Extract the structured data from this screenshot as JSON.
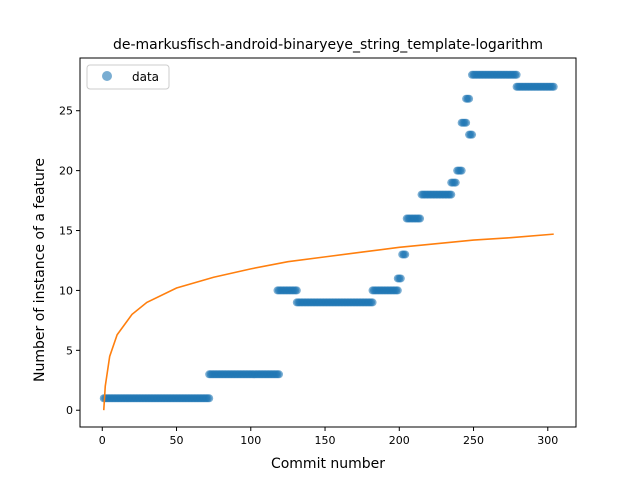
{
  "chart_data": {
    "type": "scatter",
    "title": "de-markusfisch-android-binaryeye_string_template-logarithm",
    "xlabel": "Commit number",
    "ylabel": "Number of instance of a feature",
    "xlim": [
      -15,
      319
    ],
    "ylim": [
      -1.4,
      29.4
    ],
    "xticks": [
      0,
      50,
      100,
      150,
      200,
      250,
      300
    ],
    "yticks": [
      0,
      5,
      10,
      15,
      20,
      25
    ],
    "grid": false,
    "legend": {
      "position": "top-left",
      "entries": [
        "data"
      ]
    },
    "colors": {
      "data": "#1f77b4",
      "fit": "#ff7f0e"
    },
    "series": [
      {
        "name": "data",
        "kind": "scatter",
        "segments": [
          {
            "x_start": 1,
            "x_end": 72,
            "y": 1
          },
          {
            "x_start": 72,
            "x_end": 119,
            "y": 3
          },
          {
            "x_start": 118,
            "x_end": 131,
            "y": 10
          },
          {
            "x_start": 131,
            "x_end": 182,
            "y": 9
          },
          {
            "x_start": 182,
            "x_end": 199,
            "y": 10
          },
          {
            "x_start": 199,
            "x_end": 201,
            "y": 11
          },
          {
            "x_start": 202,
            "x_end": 204,
            "y": 13
          },
          {
            "x_start": 205,
            "x_end": 214,
            "y": 16
          },
          {
            "x_start": 215,
            "x_end": 235,
            "y": 18
          },
          {
            "x_start": 235,
            "x_end": 238,
            "y": 19
          },
          {
            "x_start": 239,
            "x_end": 242,
            "y": 20
          },
          {
            "x_start": 242,
            "x_end": 245,
            "y": 24
          },
          {
            "x_start": 245,
            "x_end": 247,
            "y": 26
          },
          {
            "x_start": 247,
            "x_end": 249,
            "y": 23
          },
          {
            "x_start": 249,
            "x_end": 279,
            "y": 28
          },
          {
            "x_start": 279,
            "x_end": 304,
            "y": 27
          }
        ]
      },
      {
        "kind": "line",
        "fit": "logarithmic",
        "x_range": [
          1,
          304
        ],
        "points": [
          [
            1,
            0
          ],
          [
            2,
            2
          ],
          [
            5,
            4.5
          ],
          [
            10,
            6.3
          ],
          [
            20,
            8.0
          ],
          [
            30,
            9.0
          ],
          [
            50,
            10.2
          ],
          [
            75,
            11.1
          ],
          [
            100,
            11.8
          ],
          [
            125,
            12.4
          ],
          [
            150,
            12.8
          ],
          [
            175,
            13.2
          ],
          [
            200,
            13.6
          ],
          [
            225,
            13.9
          ],
          [
            250,
            14.2
          ],
          [
            275,
            14.4
          ],
          [
            304,
            14.7
          ]
        ]
      }
    ]
  }
}
